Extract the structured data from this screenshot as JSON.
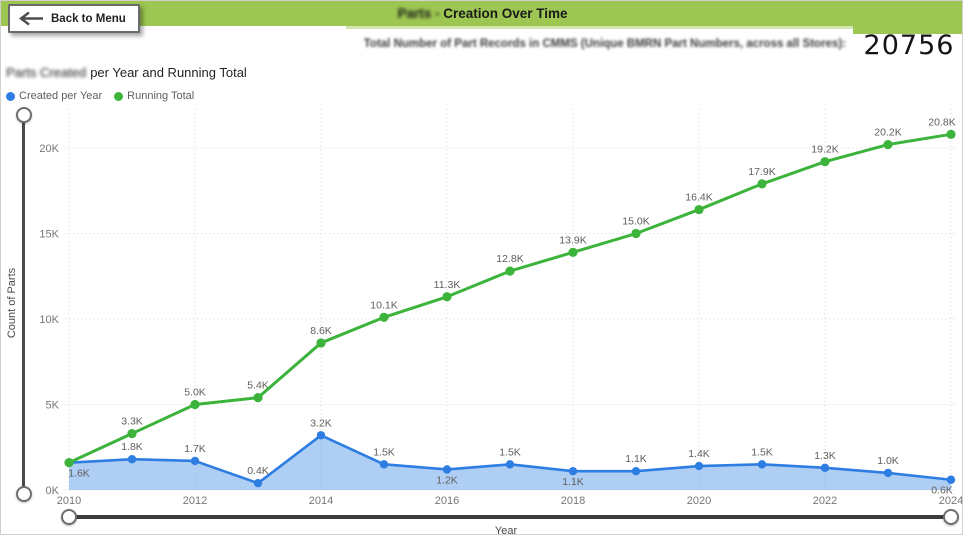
{
  "back_button": {
    "label": "Back to Menu"
  },
  "header": {
    "title_redacted": "Parts -",
    "title_rest": "Creation Over Time",
    "bar_color": "#9dc752"
  },
  "kpi": {
    "label": "Total Number of Part Records in CMMS (Unique BMRN Part Numbers, across all Stores):",
    "value": "20756"
  },
  "chart": {
    "title_redacted": "Parts Created",
    "title_rest": "per Year and Running Total",
    "y_axis_label": "Count of Parts",
    "x_axis_label": "Year"
  },
  "chart_data": {
    "type": "line",
    "title": "Parts Created per Year and Running Total",
    "xlabel": "Year",
    "ylabel": "Count of Parts",
    "x": [
      2010,
      2011,
      2012,
      2013,
      2014,
      2015,
      2016,
      2017,
      2018,
      2019,
      2020,
      2021,
      2022,
      2023,
      2024
    ],
    "x_ticks": [
      "2010",
      "2012",
      "2014",
      "2016",
      "2018",
      "2020",
      "2022",
      "2024"
    ],
    "y_ticks": [
      "0K",
      "5K",
      "10K",
      "15K",
      "20K"
    ],
    "y_grid_k": [
      0,
      5,
      10,
      15,
      20
    ],
    "ylim_k": [
      0,
      22
    ],
    "grid": true,
    "legend_position": "top-left",
    "series": [
      {
        "name": "Created per Year",
        "type": "area-line",
        "color": "#2e7de2",
        "fill_opacity": 0.38,
        "values_k": [
          1.6,
          1.8,
          1.7,
          0.4,
          3.2,
          1.5,
          1.2,
          1.5,
          1.1,
          1.1,
          1.4,
          1.5,
          1.3,
          1.0,
          0.6
        ],
        "labels": [
          "1.6K",
          "1.8K",
          "1.7K",
          "0.4K",
          "3.2K",
          "1.5K",
          "1.2K",
          "1.5K",
          "1.1K",
          "1.1K",
          "1.4K",
          "1.5K",
          "1.3K",
          "1.0K",
          "0.6K"
        ],
        "label_pos": [
          "below",
          "above",
          "above",
          "above",
          "above",
          "above",
          "below",
          "above",
          "below",
          "above",
          "above",
          "above",
          "above",
          "above",
          "below"
        ]
      },
      {
        "name": "Running Total",
        "type": "line",
        "color": "#3cb43c",
        "values_k": [
          1.6,
          3.3,
          5.0,
          5.4,
          8.6,
          10.1,
          11.3,
          12.8,
          13.9,
          15.0,
          16.4,
          17.9,
          19.2,
          20.2,
          20.8
        ],
        "labels": [
          "",
          "3.3K",
          "5.0K",
          "5.4K",
          "8.6K",
          "10.1K",
          "11.3K",
          "12.8K",
          "13.9K",
          "15.0K",
          "16.4K",
          "17.9K",
          "19.2K",
          "20.2K",
          "20.8K"
        ],
        "label_pos": [
          "above",
          "above",
          "above",
          "above",
          "above",
          "above",
          "above",
          "above",
          "above",
          "above",
          "above",
          "above",
          "above",
          "above",
          "above"
        ]
      }
    ]
  }
}
